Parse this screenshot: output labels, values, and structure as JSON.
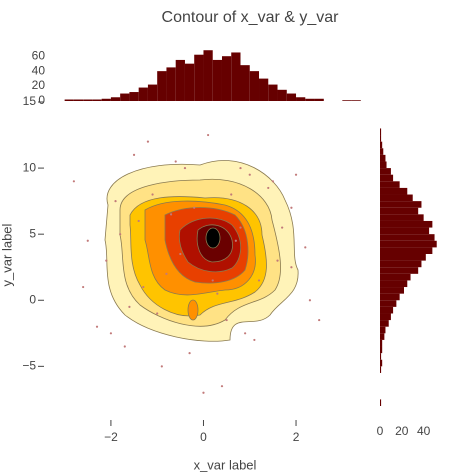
{
  "chart_data": [
    {
      "type": "contour",
      "title": "Contour of x_var & y_var",
      "xlabel": "x_var label",
      "ylabel": "y_var label",
      "xlim": [
        -3.1,
        2.95
      ],
      "ylim": [
        -8,
        15
      ],
      "xticks": [
        {
          "value": -2,
          "label": "−2"
        },
        0,
        2
      ],
      "yticks": [
        {
          "value": -5,
          "label": "−5"
        },
        0,
        5,
        10,
        15
      ],
      "marker_color": "#c27a7a",
      "x": [
        -2.8,
        -2.5,
        -2.3,
        -2.6,
        -1.9,
        -1.7,
        -1.5,
        -1.2,
        -0.9,
        -0.6,
        -0.3,
        0.1,
        0.4,
        0.8,
        1.1,
        1.5,
        1.9,
        2.2,
        2.5,
        -1.4,
        -0.8,
        0.6,
        1.2,
        1.7,
        -2.1,
        -0.2,
        0.3,
        2.3,
        -1.0,
        0.9,
        -0.5,
        1.4,
        -1.8,
        0.0,
        0.7,
        -1.3,
        1.9,
        -0.7,
        0.5,
        1.0,
        -1.6,
        2.0,
        -0.4,
        0.2,
        -2.0,
        1.6,
        -1.1,
        0.8
      ],
      "y": [
        9.0,
        4.5,
        -2.0,
        1.0,
        7.5,
        -3.5,
        11.0,
        12.0,
        -5.0,
        10.5,
        -4.0,
        12.5,
        -6.5,
        10.0,
        -3.0,
        9.0,
        7.0,
        4.0,
        -1.5,
        6.0,
        2.0,
        8.0,
        1.5,
        5.5,
        3.0,
        7.0,
        0.5,
        0.0,
        -1.0,
        -2.5,
        3.5,
        8.5,
        5.0,
        -7.0,
        4.5,
        1.0,
        2.5,
        6.5,
        -1.5,
        9.5,
        -0.5,
        9.5,
        10.0,
        1.5,
        -2.5,
        3.0,
        8.0,
        5.5
      ]
    },
    {
      "type": "histogram",
      "orientation": "vertical",
      "color": "#660000",
      "bins": [
        -3.0,
        -2.8,
        -2.6,
        -2.4,
        -2.2,
        -2.0,
        -1.8,
        -1.6,
        -1.4,
        -1.2,
        -1.0,
        -0.8,
        -0.6,
        -0.4,
        -0.2,
        0.0,
        0.2,
        0.4,
        0.6,
        0.8,
        1.0,
        1.2,
        1.4,
        1.6,
        1.8,
        2.0,
        2.2,
        2.4,
        2.6,
        2.8,
        3.0,
        3.2,
        3.4
      ],
      "counts": [
        2,
        2,
        2,
        2,
        3,
        5,
        10,
        12,
        18,
        22,
        40,
        45,
        55,
        50,
        62,
        68,
        55,
        60,
        65,
        48,
        40,
        30,
        22,
        15,
        10,
        5,
        3,
        3,
        0,
        0,
        1,
        1
      ],
      "ylim": [
        0,
        75
      ],
      "yticks": [
        0,
        20,
        40,
        60
      ]
    },
    {
      "type": "histogram",
      "orientation": "horizontal",
      "color": "#660000",
      "bins": [
        -8,
        -7.5,
        -7,
        -6.5,
        -6,
        -5.5,
        -5,
        -4.5,
        -4,
        -3.5,
        -3,
        -2.5,
        -2,
        -1.5,
        -1,
        -0.5,
        0,
        0.5,
        1,
        1.5,
        2,
        2.5,
        3,
        3.5,
        4,
        4.5,
        5,
        5.5,
        6,
        6.5,
        7,
        7.5,
        8,
        8.5,
        9,
        9.5,
        10,
        10.5,
        11,
        11.5,
        12,
        12.5,
        13
      ],
      "counts": [
        1,
        0,
        0,
        0,
        0,
        1,
        2,
        1,
        2,
        2,
        4,
        5,
        8,
        10,
        12,
        15,
        18,
        22,
        25,
        28,
        35,
        38,
        42,
        48,
        52,
        50,
        45,
        48,
        40,
        35,
        38,
        30,
        25,
        18,
        12,
        10,
        6,
        5,
        3,
        2,
        1,
        1
      ],
      "xlim": [
        0,
        55
      ],
      "xticks": [
        0,
        20,
        40
      ]
    }
  ]
}
